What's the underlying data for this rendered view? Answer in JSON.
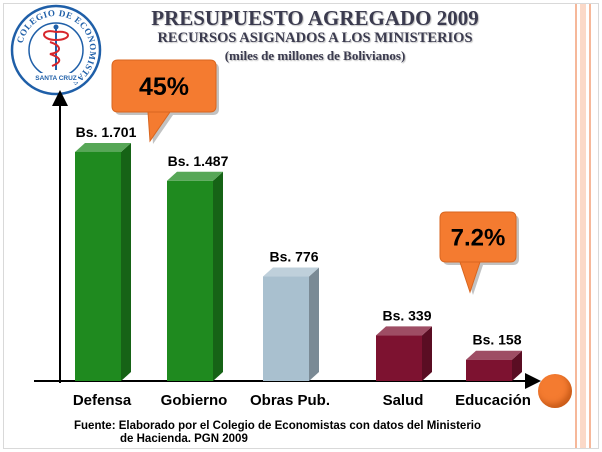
{
  "header": {
    "title": "PRESUPUESTO AGREGADO 2009",
    "subtitle": "RECURSOS ASIGNADOS A LOS MINISTERIOS",
    "unit_note": "(miles de millones de Bolivianos)"
  },
  "logo": {
    "ring_text": "COLEGIO DE ECONOMISTAS",
    "bottom_text": "SANTA CRUZ",
    "ring_color": "#1f5fa8",
    "accent_color": "#d7262c"
  },
  "callouts": [
    {
      "text": "45%",
      "target": "Defensa / Gobierno"
    },
    {
      "text": "7.2%",
      "target": "Salud / Educación"
    }
  ],
  "chart_data": {
    "type": "bar",
    "categories": [
      "Defensa",
      "Gobierno",
      "Obras Pub.",
      "Salud",
      "Educación"
    ],
    "values": [
      1701,
      1487,
      776,
      339,
      158
    ],
    "data_labels": [
      "Bs. 1.701",
      "Bs. 1.487",
      "Bs. 776",
      "Bs. 339",
      "Bs. 158"
    ],
    "colors": [
      "#1f8a1f",
      "#1f8a1f",
      "#a9c0cf",
      "#7d1230",
      "#7d1230"
    ],
    "ylim": [
      0,
      2050
    ],
    "grid": false,
    "legend": "none"
  },
  "footer": {
    "line1": "Fuente: Elaborado por el Colegio de Economistas con datos del Ministerio",
    "line2": "de Hacienda.  PGN 2009"
  },
  "colors": {
    "callout_fill": "#f47b30",
    "title_text": "#3b3b4f",
    "decor_stripe": "#f6b89a"
  }
}
